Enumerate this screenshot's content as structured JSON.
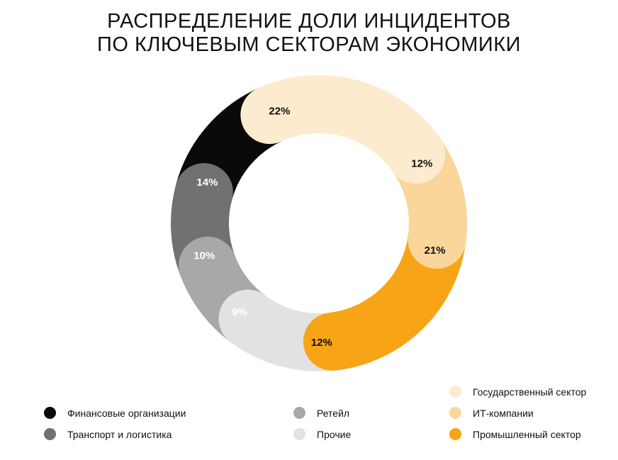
{
  "title": {
    "line1": "РАСПРЕДЕЛЕНИЕ ДОЛИ ИНЦИДЕНТОВ",
    "line2": "ПО КЛЮЧЕВЫМ СЕКТОРАМ ЭКОНОМИКИ"
  },
  "chart_data": {
    "type": "pie",
    "title": "РАСПРЕДЕЛЕНИЕ ДОЛИ ИНЦИДЕНТОВ ПО КЛЮЧЕВЫМ СЕКТОРАМ ЭКОНОМИКИ",
    "unit": "%",
    "legend_placement": "bottom",
    "slices": [
      {
        "name": "Государственный сектор",
        "value": 22,
        "label": "22%",
        "color": "#FDEBCF",
        "label_color": "#111111"
      },
      {
        "name": "ИТ-компании",
        "value": 12,
        "label": "12%",
        "color": "#FBD69A",
        "label_color": "#111111"
      },
      {
        "name": "Промышленный сектор",
        "value": 21,
        "label": "21%",
        "color": "#F7A416",
        "label_color": "#111111"
      },
      {
        "name": "Прочие",
        "value": 12,
        "label": "12%",
        "color": "#E2E2E2",
        "label_color": "#111111"
      },
      {
        "name": "Ретейл",
        "value": 9,
        "label": "9%",
        "color": "#A8A8A8",
        "label_color": "#ffffff"
      },
      {
        "name": "Транспорт и логистика",
        "value": 10,
        "label": "10%",
        "color": "#717171",
        "label_color": "#ffffff"
      },
      {
        "name": "Финансовые организации",
        "value": 14,
        "label": "14%",
        "color": "#0A0A0A",
        "label_color": "#ffffff"
      }
    ]
  },
  "legend": {
    "items": [
      {
        "label": "Финансовые организации",
        "color": "#0A0A0A"
      },
      {
        "label": "Транспорт и логистика",
        "color": "#717171"
      },
      {
        "label": "Ретейл",
        "color": "#A8A8A8"
      },
      {
        "label": "Прочие",
        "color": "#E2E2E2"
      },
      {
        "label": "Государственный сектор",
        "color": "#FDEBCF"
      },
      {
        "label": "ИТ-компании",
        "color": "#FBD69A"
      },
      {
        "label": "Промышленный сектор",
        "color": "#F7A416"
      }
    ]
  }
}
